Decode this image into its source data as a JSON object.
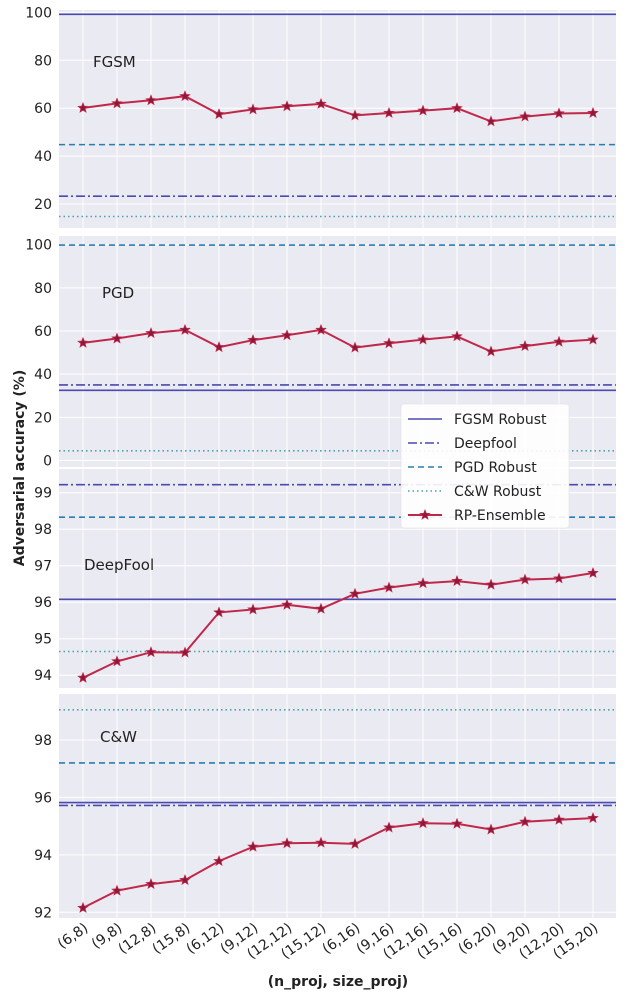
{
  "chart_data": {
    "type": "line",
    "ylabel": "Adversarial accuracy (%)",
    "xlabel": "(n_proj, size_proj)",
    "categories": [
      "(6,8)",
      "(9,8)",
      "(12,8)",
      "(15,8)",
      "(6,12)",
      "(9,12)",
      "(12,12)",
      "(15,12)",
      "(6,16)",
      "(9,16)",
      "(12,16)",
      "(15,16)",
      "(6,20)",
      "(9,20)",
      "(12,20)",
      "(15,20)"
    ],
    "legend": {
      "position": "right",
      "entries": [
        {
          "key": "fgsm",
          "label": "FGSM Robust"
        },
        {
          "key": "deepfool",
          "label": "Deepfool"
        },
        {
          "key": "pgd",
          "label": "PGD Robust"
        },
        {
          "key": "cw",
          "label": "C&W Robust"
        },
        {
          "key": "rp",
          "label": "RP-Ensemble"
        }
      ]
    },
    "colors": {
      "fgsm": "#4a4ab0",
      "deepfool": "#4a4ab0",
      "pgd": "#2a7db0",
      "cw": "#4aa0a8",
      "rp": "#c0284a",
      "rp_marker": "#8a1a3a",
      "panel_bg": "#eaeaf2",
      "grid": "#ffffff"
    },
    "panels": [
      {
        "title": "FGSM",
        "ylim": [
          10,
          101
        ],
        "yticks": [
          20,
          40,
          60,
          80,
          100
        ],
        "baselines": {
          "fgsm": 99.2,
          "deepfool": 23.3,
          "pgd": 44.8,
          "cw": 14.8
        },
        "rp_values": [
          60.1,
          62.0,
          63.3,
          65.0,
          57.5,
          59.5,
          60.8,
          61.8,
          57.0,
          58.0,
          59.0,
          60.0,
          54.5,
          56.5,
          57.8,
          58.0
        ]
      },
      {
        "title": "PGD",
        "ylim": [
          -3,
          104
        ],
        "yticks": [
          0,
          20,
          40,
          60,
          80,
          100
        ],
        "baselines": {
          "fgsm": 32.5,
          "deepfool": 35.0,
          "pgd": 99.8,
          "cw": 4.5
        },
        "rp_values": [
          54.5,
          56.5,
          59.0,
          60.5,
          52.5,
          55.8,
          58.0,
          60.5,
          52.3,
          54.3,
          56.0,
          57.5,
          50.5,
          53.0,
          55.0,
          56.0
        ]
      },
      {
        "title": "DeepFool",
        "ylim": [
          93.65,
          99.65
        ],
        "yticks": [
          94,
          95,
          96,
          97,
          98,
          99
        ],
        "baselines": {
          "fgsm": 96.08,
          "deepfool": 99.22,
          "pgd": 98.33,
          "cw": 94.65
        },
        "rp_values": [
          93.93,
          94.38,
          94.63,
          94.62,
          95.72,
          95.8,
          95.93,
          95.82,
          96.23,
          96.4,
          96.52,
          96.58,
          96.48,
          96.62,
          96.65,
          96.8
        ]
      },
      {
        "title": "C&W",
        "ylim": [
          91.8,
          99.6
        ],
        "yticks": [
          92,
          94,
          96,
          98
        ],
        "baselines": {
          "fgsm": 95.82,
          "deepfool": 95.72,
          "pgd": 97.2,
          "cw": 99.05
        },
        "rp_values": [
          92.15,
          92.75,
          92.98,
          93.12,
          93.78,
          94.28,
          94.4,
          94.42,
          94.38,
          94.95,
          95.1,
          95.08,
          94.88,
          95.15,
          95.22,
          95.28
        ]
      }
    ]
  }
}
